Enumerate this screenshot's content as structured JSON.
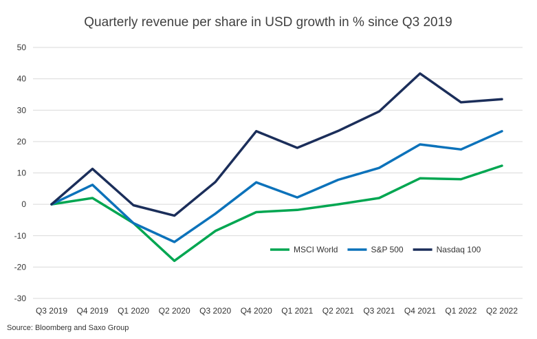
{
  "chart_data": {
    "type": "line",
    "title": "Quarterly revenue per share in USD growth in % since Q3 2019",
    "xlabel": "",
    "ylabel": "",
    "categories": [
      "Q3 2019",
      "Q4 2019",
      "Q1 2020",
      "Q2 2020",
      "Q3 2020",
      "Q4 2020",
      "Q1 2021",
      "Q2 2021",
      "Q3 2021",
      "Q4 2021",
      "Q1 2022",
      "Q2 2022"
    ],
    "ylim": [
      -30,
      50
    ],
    "yticks": [
      50,
      40,
      30,
      20,
      10,
      0,
      -10,
      -20,
      -30
    ],
    "grid": true,
    "legend_position": "bottom-right",
    "series": [
      {
        "name": "MSCI World",
        "color": "#00a651",
        "values": [
          0,
          2,
          -6,
          -18,
          -8.5,
          -2.5,
          -1.8,
          0,
          2,
          8.3,
          8,
          12.3
        ]
      },
      {
        "name": "S&P 500",
        "color": "#0c72ba",
        "values": [
          0,
          6.2,
          -6,
          -12,
          -3,
          7,
          2.2,
          7.8,
          11.6,
          19.1,
          17.5,
          23.3
        ]
      },
      {
        "name": "Nasdaq 100",
        "color": "#1b2e5a",
        "values": [
          0,
          11.3,
          -0.3,
          -3.6,
          7.1,
          23.3,
          18,
          23.4,
          29.6,
          41.7,
          32.5,
          33.5
        ]
      }
    ]
  },
  "source": "Source: Bloomberg and Saxo Group"
}
